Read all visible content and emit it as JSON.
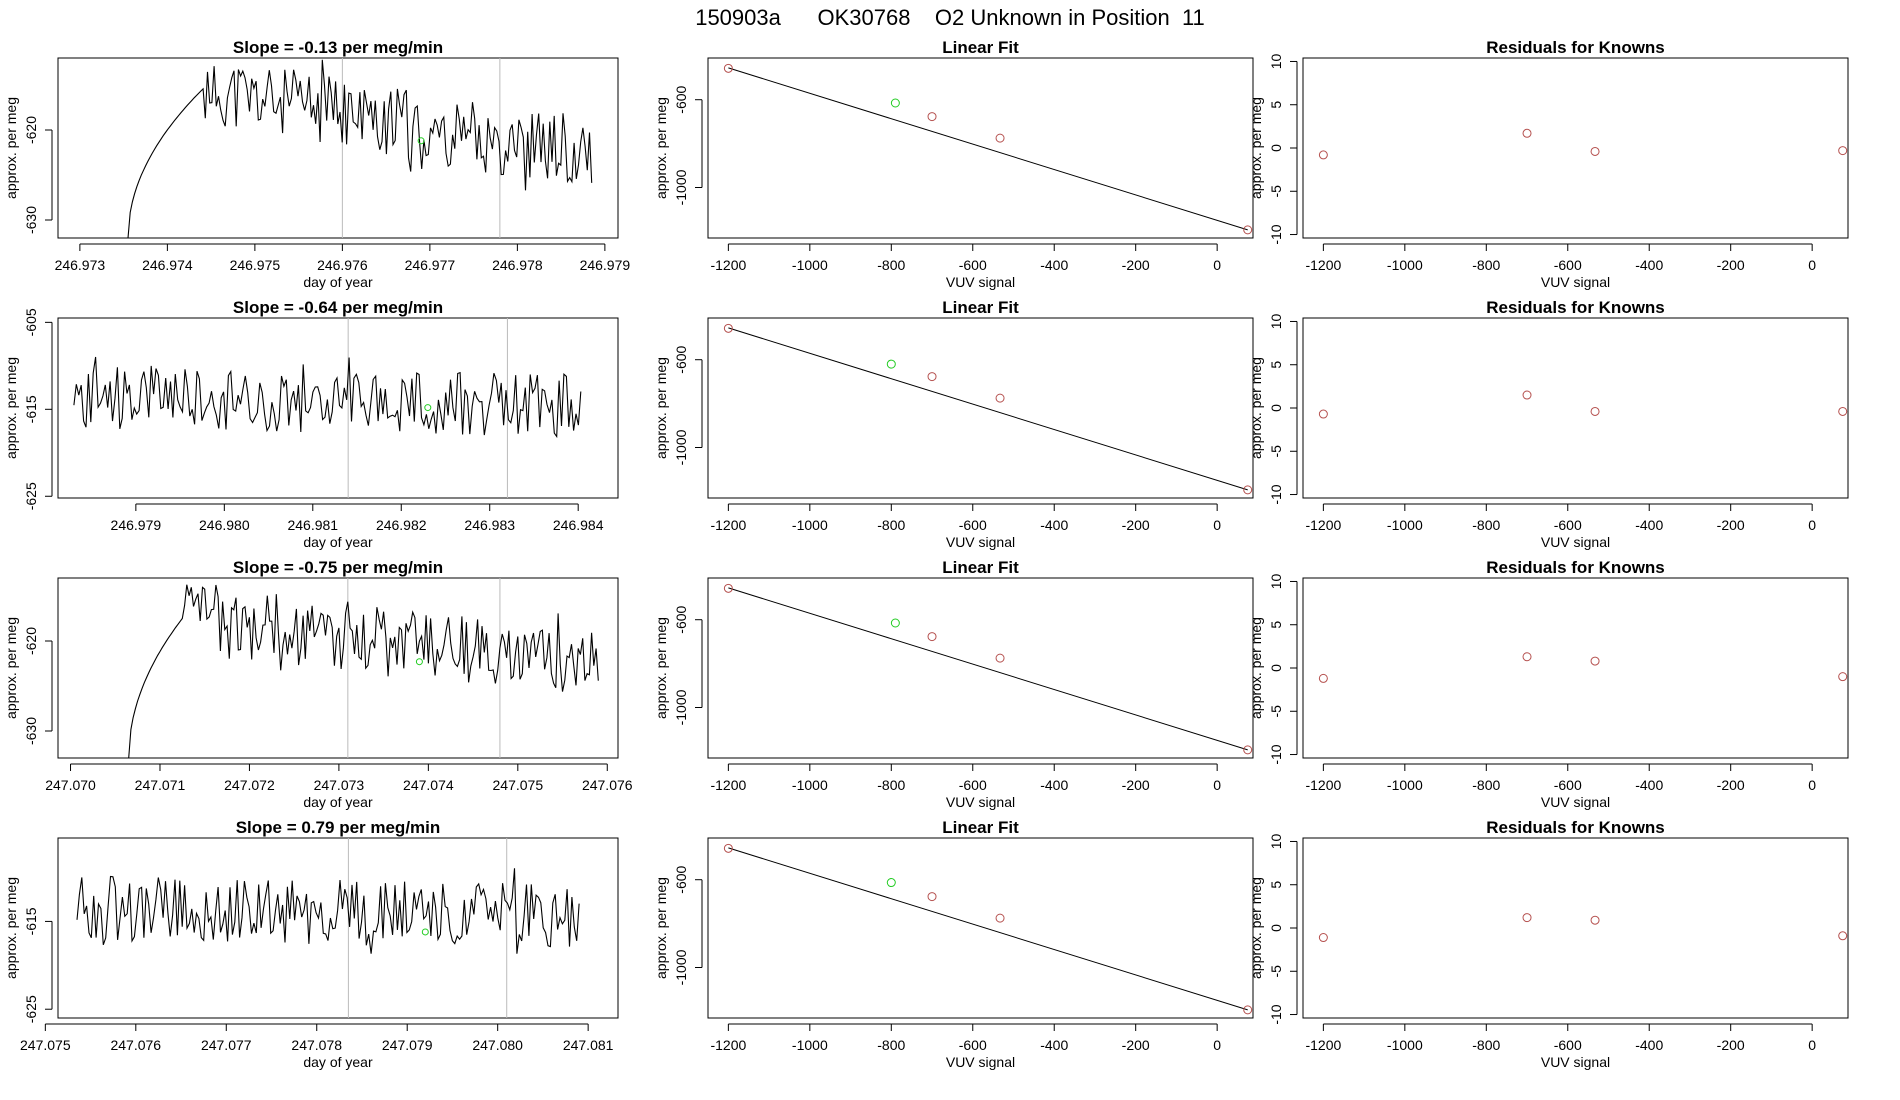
{
  "figure_title": "150903a      OK30768    O2 Unknown in Position  11",
  "colors": {
    "line": "#000000",
    "vline": "#bbbbbb",
    "known": "#b5504e",
    "unknown": "#22cc22"
  },
  "labels": {
    "day_of_year": "day of year",
    "vuv_signal": "VUV signal",
    "approx_per_meg": "approx. per meg",
    "linear_fit": "Linear Fit",
    "residuals_title": "Residuals for Knowns"
  },
  "chart_data": [
    {
      "type": "line",
      "title": "Slope =  -0.13  per meg/min",
      "xlabel": "day of year",
      "ylabel": "approx. per meg",
      "xticks": [
        "246.973",
        "246.974",
        "246.975",
        "246.976",
        "246.977",
        "246.978",
        "246.979"
      ],
      "xtick_values": [
        246.973,
        246.974,
        246.975,
        246.976,
        246.977,
        246.978,
        246.979
      ],
      "xlim": [
        246.97275,
        246.97915
      ],
      "yticks": [
        "-630",
        "-620"
      ],
      "ytick_values": [
        -630,
        -620
      ],
      "ylim": [
        -632,
        -612
      ],
      "series": {
        "start": 246.97355,
        "end": 246.97885,
        "level_start": -632,
        "level_end": -622.8,
        "rise_end": 246.9744,
        "peak": -615.5,
        "peak_at": 246.9753,
        "noise": 1.8,
        "seed": 11
      },
      "vlines": [
        246.976,
        246.9778
      ],
      "marker": {
        "x": 246.9769,
        "y": -621.2
      }
    },
    {
      "type": "line",
      "title": "Slope =  -0.64  per meg/min",
      "xlabel": "day of year",
      "ylabel": "approx. per meg",
      "xticks": [
        "246.979",
        "246.980",
        "246.981",
        "246.982",
        "246.983",
        "246.984"
      ],
      "xtick_values": [
        246.979,
        246.98,
        246.981,
        246.982,
        246.983,
        246.984
      ],
      "xlim": [
        246.97812,
        246.98445
      ],
      "yticks": [
        "-625",
        "-615",
        "-605"
      ],
      "ytick_values": [
        -625,
        -615,
        -605
      ],
      "ylim": [
        -625.2,
        -604.5
      ],
      "series": {
        "start": 246.9783,
        "end": 246.98403,
        "level_start": -622.2,
        "level_end": -614.5,
        "rise_end": 246.9783,
        "peak": -613.5,
        "peak_at": 246.9822,
        "noise": 1.7,
        "seed": 23
      },
      "vlines": [
        246.9814,
        246.9832
      ],
      "marker": {
        "x": 246.9823,
        "y": -614.8
      }
    },
    {
      "type": "line",
      "title": "Slope =  -0.75  per meg/min",
      "xlabel": "day of year",
      "ylabel": "approx. per meg",
      "xticks": [
        "247.070",
        "247.071",
        "247.072",
        "247.073",
        "247.074",
        "247.075",
        "247.076"
      ],
      "xtick_values": [
        247.07,
        247.071,
        247.072,
        247.073,
        247.074,
        247.075,
        247.076
      ],
      "xlim": [
        247.06986,
        247.07612
      ],
      "yticks": [
        "-630",
        "-620"
      ],
      "ytick_values": [
        -630,
        -620
      ],
      "ylim": [
        -633,
        -613
      ],
      "series": {
        "start": 247.07065,
        "end": 247.0759,
        "level_start": -633,
        "level_end": -622.5,
        "rise_end": 247.07125,
        "peak": -617.5,
        "peak_at": 247.0722,
        "noise": 1.8,
        "seed": 37
      },
      "vlines": [
        247.0731,
        247.0748
      ],
      "marker": {
        "x": 247.0739,
        "y": -622.3
      }
    },
    {
      "type": "line",
      "title": "Slope =  0.79  per meg/min",
      "xlabel": "day of year",
      "ylabel": "approx. per meg",
      "xticks": [
        "247.075",
        "247.076",
        "247.077",
        "247.078",
        "247.079",
        "247.080",
        "247.081"
      ],
      "xtick_values": [
        247.075,
        247.076,
        247.077,
        247.078,
        247.079,
        247.08,
        247.081
      ],
      "xlim": [
        247.07514,
        247.08133
      ],
      "yticks": [
        "-625",
        "-615"
      ],
      "ytick_values": [
        -625,
        -615
      ],
      "ylim": [
        -626,
        -605.5
      ],
      "series": {
        "start": 247.07535,
        "end": 247.0809,
        "level_start": -622.5,
        "level_end": -614.5,
        "rise_end": 247.07535,
        "peak": -613.5,
        "peak_at": 247.0806,
        "noise": 1.7,
        "seed": 53
      },
      "vlines": [
        247.07835,
        247.0801
      ],
      "marker": {
        "x": 247.0792,
        "y": -616.2
      }
    },
    {
      "type": "scatter",
      "title": "Linear Fit",
      "xlabel": "VUV signal",
      "ylabel": "approx. per meg",
      "xticks": [
        "-1200",
        "-1000",
        "-800",
        "-600",
        "-400",
        "-200",
        "0"
      ],
      "xtick_values": [
        -1200,
        -1000,
        -800,
        -600,
        -400,
        -200,
        0
      ],
      "xlim": [
        -1250,
        88
      ],
      "yticks": [
        "-1000",
        "-600"
      ],
      "ytick_values": [
        -1000,
        -600
      ],
      "ylim": [
        -1230,
        -410
      ],
      "knowns": [
        [
          -1200,
          -457
        ],
        [
          -700,
          -677
        ],
        [
          -533,
          -775
        ],
        [
          75,
          -1193
        ]
      ],
      "unknown": [
        -790,
        -615
      ],
      "fit_line": [
        [
          -1200,
          -455
        ],
        [
          75,
          -1193
        ]
      ]
    },
    {
      "type": "scatter",
      "title": "Linear Fit",
      "xlabel": "VUV signal",
      "ylabel": "approx. per meg",
      "xticks": [
        "-1200",
        "-1000",
        "-800",
        "-600",
        "-400",
        "-200",
        "0"
      ],
      "xtick_values": [
        -1200,
        -1000,
        -800,
        -600,
        -400,
        -200,
        0
      ],
      "xlim": [
        -1250,
        88
      ],
      "yticks": [
        "-1000",
        "-600"
      ],
      "ytick_values": [
        -1000,
        -600
      ],
      "ylim": [
        -1230,
        -410
      ],
      "knowns": [
        [
          -1200,
          -457
        ],
        [
          -700,
          -677
        ],
        [
          -533,
          -775
        ],
        [
          75,
          -1193
        ]
      ],
      "unknown": [
        -800,
        -620
      ],
      "fit_line": [
        [
          -1200,
          -455
        ],
        [
          75,
          -1193
        ]
      ]
    },
    {
      "type": "scatter",
      "title": "Linear Fit",
      "xlabel": "VUV signal",
      "ylabel": "approx. per meg",
      "xticks": [
        "-1200",
        "-1000",
        "-800",
        "-600",
        "-400",
        "-200",
        "0"
      ],
      "xtick_values": [
        -1200,
        -1000,
        -800,
        -600,
        -400,
        -200,
        0
      ],
      "xlim": [
        -1250,
        88
      ],
      "yticks": [
        "-1000",
        "-600"
      ],
      "ytick_values": [
        -1000,
        -600
      ],
      "ylim": [
        -1230,
        -410
      ],
      "knowns": [
        [
          -1200,
          -457
        ],
        [
          -700,
          -677
        ],
        [
          -533,
          -775
        ],
        [
          75,
          -1193
        ]
      ],
      "unknown": [
        -790,
        -615
      ],
      "fit_line": [
        [
          -1200,
          -455
        ],
        [
          75,
          -1193
        ]
      ]
    },
    {
      "type": "scatter",
      "title": "Linear Fit",
      "xlabel": "VUV signal",
      "ylabel": "approx. per meg",
      "xticks": [
        "-1200",
        "-1000",
        "-800",
        "-600",
        "-400",
        "-200",
        "0"
      ],
      "xtick_values": [
        -1200,
        -1000,
        -800,
        -600,
        -400,
        -200,
        0
      ],
      "xlim": [
        -1250,
        88
      ],
      "yticks": [
        "-1000",
        "-600"
      ],
      "ytick_values": [
        -1000,
        -600
      ],
      "ylim": [
        -1230,
        -410
      ],
      "knowns": [
        [
          -1200,
          -457
        ],
        [
          -700,
          -677
        ],
        [
          -533,
          -775
        ],
        [
          75,
          -1193
        ]
      ],
      "unknown": [
        -800,
        -613
      ],
      "fit_line": [
        [
          -1200,
          -455
        ],
        [
          75,
          -1193
        ]
      ]
    },
    {
      "type": "scatter",
      "title": "Residuals for Knowns",
      "xlabel": "VUV signal",
      "ylabel": "approx. per meg",
      "xticks": [
        "-1200",
        "-1000",
        "-800",
        "-600",
        "-400",
        "-200",
        "0"
      ],
      "xtick_values": [
        -1200,
        -1000,
        -800,
        -600,
        -400,
        -200,
        0
      ],
      "xlim": [
        -1250,
        88
      ],
      "yticks": [
        "-10",
        "-5",
        "0",
        "5",
        "10"
      ],
      "ytick_values": [
        -10,
        -5,
        0,
        5,
        10
      ],
      "ylim": [
        -10.4,
        10.4
      ],
      "points": [
        [
          -1200,
          -0.8
        ],
        [
          -700,
          1.7
        ],
        [
          -533,
          -0.4
        ],
        [
          75,
          -0.3
        ]
      ]
    },
    {
      "type": "scatter",
      "title": "Residuals for Knowns",
      "xlabel": "VUV signal",
      "ylabel": "approx. per meg",
      "xticks": [
        "-1200",
        "-1000",
        "-800",
        "-600",
        "-400",
        "-200",
        "0"
      ],
      "xtick_values": [
        -1200,
        -1000,
        -800,
        -600,
        -400,
        -200,
        0
      ],
      "xlim": [
        -1250,
        88
      ],
      "yticks": [
        "-10",
        "-5",
        "0",
        "5",
        "10"
      ],
      "ytick_values": [
        -10,
        -5,
        0,
        5,
        10
      ],
      "ylim": [
        -10.4,
        10.4
      ],
      "points": [
        [
          -1200,
          -0.7
        ],
        [
          -700,
          1.5
        ],
        [
          -533,
          -0.4
        ],
        [
          75,
          -0.4
        ]
      ]
    },
    {
      "type": "scatter",
      "title": "Residuals for Knowns",
      "xlabel": "VUV signal",
      "ylabel": "approx. per meg",
      "xticks": [
        "-1200",
        "-1000",
        "-800",
        "-600",
        "-400",
        "-200",
        "0"
      ],
      "xtick_values": [
        -1200,
        -1000,
        -800,
        -600,
        -400,
        -200,
        0
      ],
      "xlim": [
        -1250,
        88
      ],
      "yticks": [
        "-10",
        "-5",
        "0",
        "5",
        "10"
      ],
      "ytick_values": [
        -10,
        -5,
        0,
        5,
        10
      ],
      "ylim": [
        -10.4,
        10.4
      ],
      "points": [
        [
          -1200,
          -1.2
        ],
        [
          -700,
          1.3
        ],
        [
          -533,
          0.8
        ],
        [
          75,
          -1.0
        ]
      ]
    },
    {
      "type": "scatter",
      "title": "Residuals for Knowns",
      "xlabel": "VUV signal",
      "ylabel": "approx. per meg",
      "xticks": [
        "-1200",
        "-1000",
        "-800",
        "-600",
        "-400",
        "-200",
        "0"
      ],
      "xtick_values": [
        -1200,
        -1000,
        -800,
        -600,
        -400,
        -200,
        0
      ],
      "xlim": [
        -1250,
        88
      ],
      "yticks": [
        "-10",
        "-5",
        "0",
        "5",
        "10"
      ],
      "ytick_values": [
        -10,
        -5,
        0,
        5,
        10
      ],
      "ylim": [
        -10.4,
        10.4
      ],
      "points": [
        [
          -1200,
          -1.1
        ],
        [
          -700,
          1.2
        ],
        [
          -533,
          0.9
        ],
        [
          75,
          -0.9
        ]
      ]
    }
  ]
}
